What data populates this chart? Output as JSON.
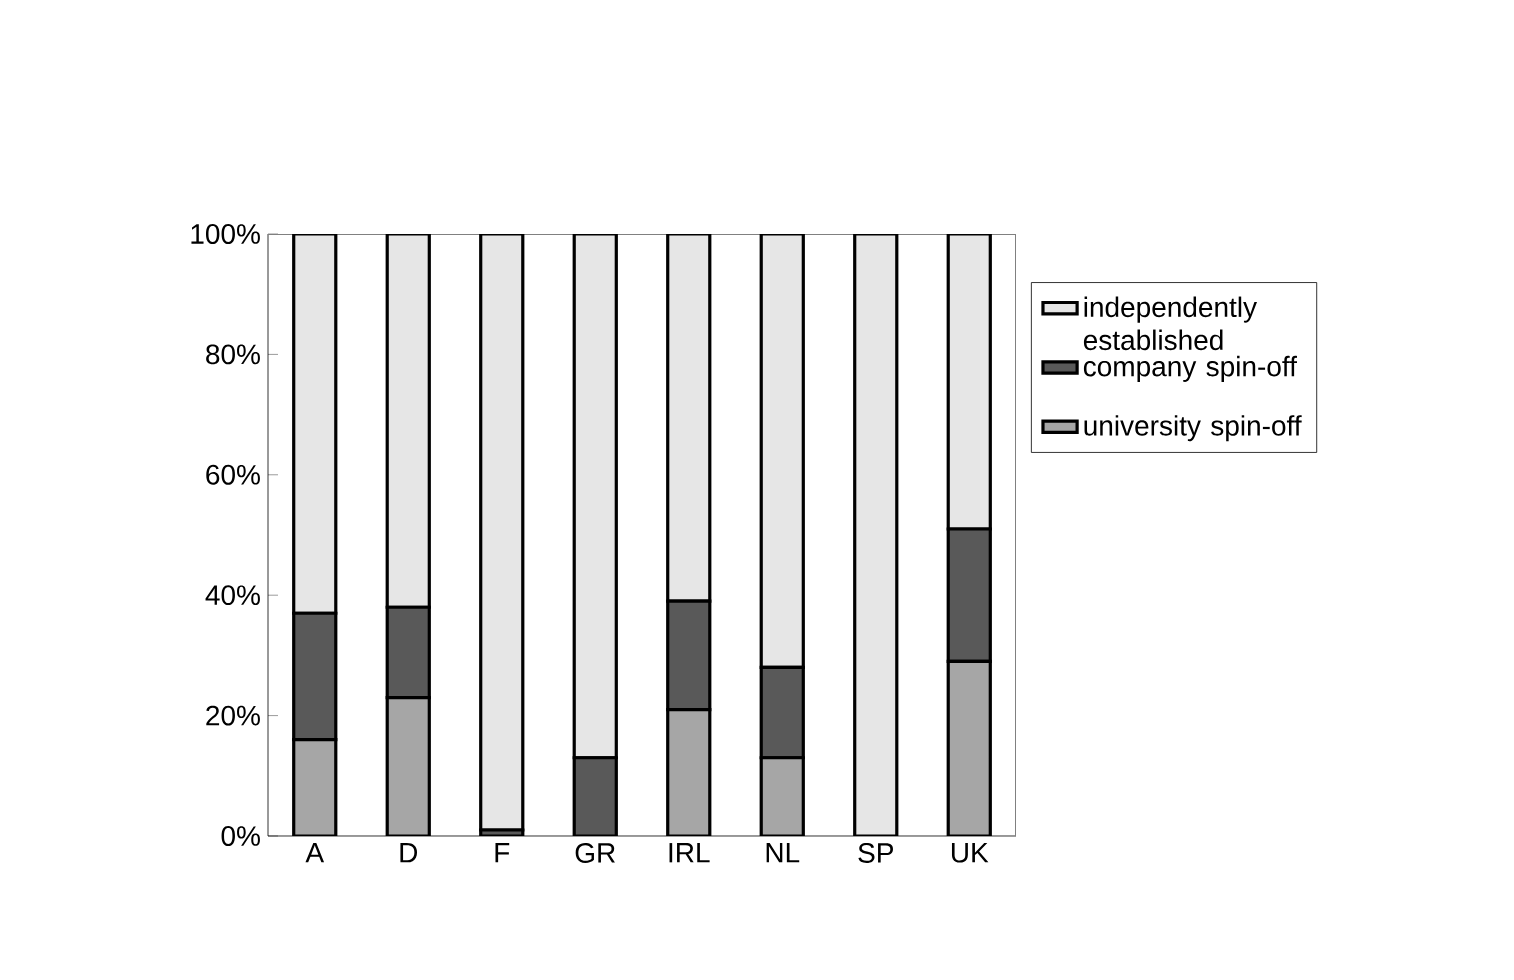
{
  "chart_data": {
    "type": "bar",
    "stacked": true,
    "categories": [
      "A",
      "D",
      "F",
      "GR",
      "IRL",
      "NL",
      "SP",
      "UK"
    ],
    "series": [
      {
        "name": "university spin-off",
        "color": "#a6a6a6",
        "values": [
          16,
          23,
          0,
          0,
          21,
          13,
          0,
          29
        ]
      },
      {
        "name": "company spin-off",
        "color": "#595959",
        "values": [
          21,
          15,
          1,
          13,
          18,
          15,
          0,
          22
        ]
      },
      {
        "name": "independently established",
        "color": "#e6e6e6",
        "values": [
          63,
          62,
          99,
          87,
          61,
          72,
          100,
          49
        ]
      }
    ],
    "ylim": [
      0,
      100
    ],
    "yticks": [
      {
        "value": 0,
        "label": "0%"
      },
      {
        "value": 20,
        "label": "20%"
      },
      {
        "value": 40,
        "label": "40%"
      },
      {
        "value": 60,
        "label": "60%"
      },
      {
        "value": 80,
        "label": "80%"
      },
      {
        "value": 100,
        "label": "100%"
      }
    ],
    "grid": false,
    "legend": "right"
  }
}
